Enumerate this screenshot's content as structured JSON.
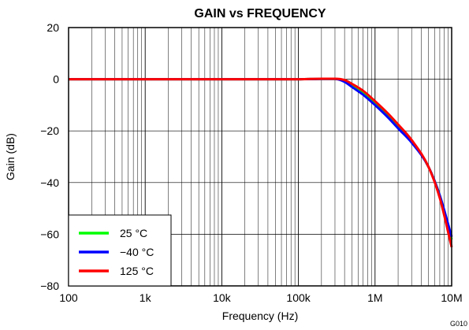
{
  "chart_data": {
    "type": "line",
    "title": "GAIN vs FREQUENCY",
    "xlabel": "Frequency (Hz)",
    "ylabel": "Gain (dB)",
    "x_scale": "log",
    "xlim": [
      100,
      10000000
    ],
    "ylim": [
      -80,
      20
    ],
    "x_ticks": [
      {
        "value": 100,
        "label": "100"
      },
      {
        "value": 1000,
        "label": "1k"
      },
      {
        "value": 10000,
        "label": "10k"
      },
      {
        "value": 100000,
        "label": "100k"
      },
      {
        "value": 1000000,
        "label": "1M"
      },
      {
        "value": 10000000,
        "label": "10M"
      }
    ],
    "y_ticks": [
      {
        "value": 20,
        "label": "20"
      },
      {
        "value": 0,
        "label": "0"
      },
      {
        "value": -20,
        "label": "−20"
      },
      {
        "value": -40,
        "label": "−40"
      },
      {
        "value": -60,
        "label": "−60"
      },
      {
        "value": -80,
        "label": "−80"
      }
    ],
    "grid": true,
    "legend_position": "bottom-left",
    "series": [
      {
        "name": "25 °C",
        "color": "#00ff00",
        "x": [
          100,
          1000,
          10000,
          100000,
          200000,
          300000,
          400000,
          500000,
          700000,
          1000000,
          1500000,
          2000000,
          3000000,
          5000000,
          7000000,
          10000000
        ],
        "y": [
          0,
          0,
          0,
          0,
          0.1,
          0.1,
          -0.5,
          -2,
          -5,
          -9,
          -14,
          -18,
          -24,
          -34,
          -45,
          -62
        ]
      },
      {
        "name": "−40 °C",
        "color": "#0000ff",
        "x": [
          100,
          1000,
          10000,
          100000,
          200000,
          300000,
          400000,
          500000,
          700000,
          1000000,
          1500000,
          2000000,
          3000000,
          5000000,
          7000000,
          10000000
        ],
        "y": [
          0,
          0,
          0,
          0,
          0.1,
          0.1,
          -1,
          -3,
          -6,
          -10,
          -15,
          -19,
          -24.5,
          -34,
          -45,
          -61
        ]
      },
      {
        "name": "125 °C",
        "color": "#ff0000",
        "x": [
          100,
          1000,
          10000,
          100000,
          200000,
          300000,
          400000,
          500000,
          700000,
          1000000,
          1500000,
          2000000,
          3000000,
          5000000,
          7000000,
          10000000
        ],
        "y": [
          0,
          0,
          0,
          0,
          0.2,
          0.2,
          -0.3,
          -1.8,
          -4.5,
          -8.5,
          -13.5,
          -17.5,
          -23.5,
          -34,
          -46,
          -65
        ]
      }
    ]
  },
  "figure_code": "G010"
}
